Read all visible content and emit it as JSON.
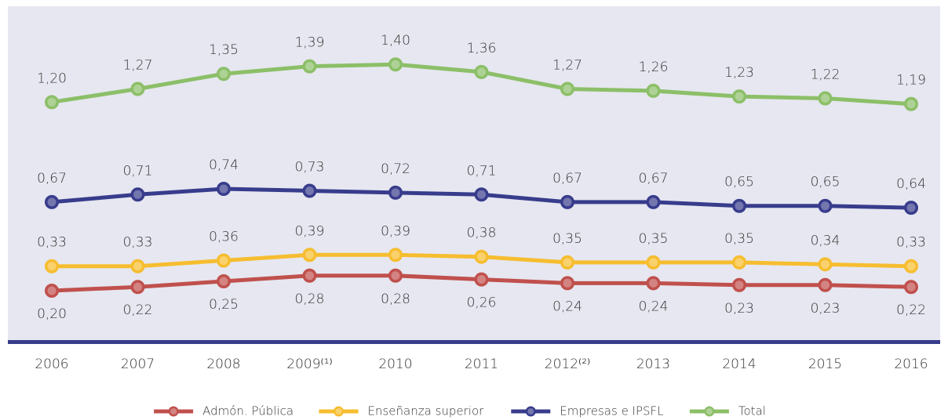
{
  "chart_data": {
    "type": "line",
    "categories": [
      "2006",
      "2007",
      "2008",
      "2009⁽¹⁾",
      "2010",
      "2011",
      "2012⁽²⁾",
      "2013",
      "2014",
      "2015",
      "2016"
    ],
    "series": [
      {
        "name": "Admón. Pública",
        "color": "#c0504d",
        "label_position": "below",
        "values": [
          0.2,
          0.22,
          0.25,
          0.28,
          0.28,
          0.26,
          0.24,
          0.24,
          0.23,
          0.23,
          0.22
        ],
        "value_labels": [
          "0,20",
          "0,22",
          "0,25",
          "0,28",
          "0,28",
          "0,26",
          "0,24",
          "0,24",
          "0,23",
          "0,23",
          "0,22"
        ]
      },
      {
        "name": "Enseñanza superior",
        "color": "#f6bd2f",
        "label_position": "above",
        "values": [
          0.33,
          0.33,
          0.36,
          0.39,
          0.39,
          0.38,
          0.35,
          0.35,
          0.35,
          0.34,
          0.33
        ],
        "value_labels": [
          "0,33",
          "0,33",
          "0,36",
          "0,39",
          "0,39",
          "0,38",
          "0,35",
          "0,35",
          "0,35",
          "0,34",
          "0,33"
        ]
      },
      {
        "name": "Empresas e IPSFL",
        "color": "#383c8c",
        "label_position": "above",
        "values": [
          0.67,
          0.71,
          0.74,
          0.73,
          0.72,
          0.71,
          0.67,
          0.67,
          0.65,
          0.65,
          0.64
        ],
        "value_labels": [
          "0,67",
          "0,71",
          "0,74",
          "0,73",
          "0,72",
          "0,71",
          "0,67",
          "0,67",
          "0,65",
          "0,65",
          "0,64"
        ]
      },
      {
        "name": "Total",
        "color": "#8cbf68",
        "label_position": "above",
        "values": [
          1.2,
          1.27,
          1.35,
          1.39,
          1.4,
          1.36,
          1.27,
          1.26,
          1.23,
          1.22,
          1.19
        ],
        "value_labels": [
          "1,20",
          "1,27",
          "1,35",
          "1,39",
          "1,40",
          "1,36",
          "1,27",
          "1,26",
          "1,23",
          "1,22",
          "1,19"
        ]
      }
    ],
    "ylim": [
      -0.07,
      1.7
    ],
    "legend": "bottom",
    "grid": false
  }
}
